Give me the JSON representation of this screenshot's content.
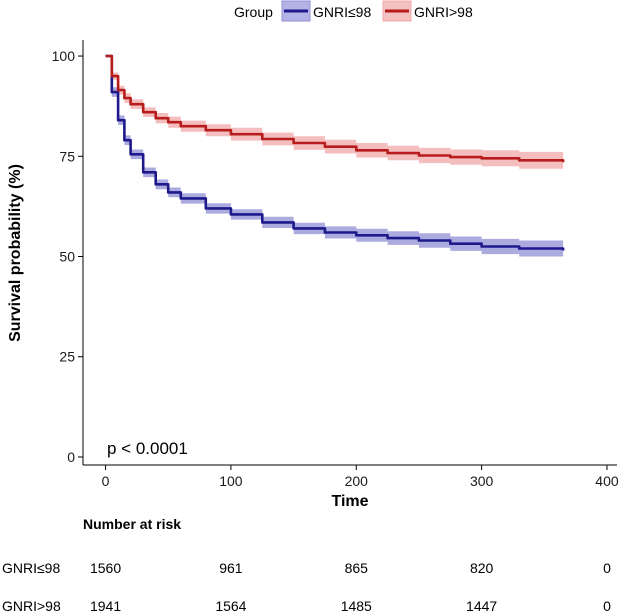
{
  "chart_data": {
    "type": "line",
    "subtype": "kaplan-meier survival curve with risk table",
    "xlabel": "Time",
    "ylabel": "Survival probability (%)",
    "xlim": [
      -18,
      408
    ],
    "ylim": [
      -2,
      104
    ],
    "x_ticks": [
      0,
      100,
      200,
      300,
      400
    ],
    "y_ticks": [
      0,
      25,
      50,
      75,
      100
    ],
    "grid": false,
    "legend": {
      "title": "Group",
      "placement": "top"
    },
    "annotation": "p < 0.0001",
    "series": [
      {
        "name": "GNRI≤98",
        "color": "#1f1a8c",
        "band_color": "#8f8fd6",
        "x": [
          0,
          5,
          10,
          15,
          20,
          30,
          40,
          50,
          60,
          80,
          100,
          125,
          150,
          175,
          200,
          225,
          250,
          275,
          300,
          330,
          365
        ],
        "values": [
          100,
          91,
          84,
          79,
          75.5,
          71,
          68,
          66,
          64.5,
          62,
          60.5,
          58.5,
          57,
          56,
          55.3,
          54.6,
          54,
          53.2,
          52.5,
          52,
          51.5
        ],
        "lower": [
          100,
          89.8,
          82.8,
          77.8,
          74.3,
          69.8,
          66.8,
          64.8,
          63.2,
          60.7,
          59.2,
          57.1,
          55.6,
          54.5,
          53.7,
          52.9,
          52.2,
          51.4,
          50.6,
          50,
          49.5
        ],
        "upper": [
          100,
          92.2,
          85.2,
          80.2,
          76.7,
          72.2,
          69.2,
          67.2,
          65.8,
          63.3,
          61.8,
          59.9,
          58.4,
          57.5,
          56.9,
          56.3,
          55.8,
          55,
          54.4,
          54,
          53.5
        ]
      },
      {
        "name": "GNRI>98",
        "color": "#b81c1c",
        "band_color": "#f0a8a8",
        "x": [
          0,
          5,
          10,
          15,
          20,
          30,
          40,
          50,
          60,
          80,
          100,
          125,
          150,
          175,
          200,
          225,
          250,
          275,
          300,
          330,
          365
        ],
        "values": [
          100,
          95,
          91.5,
          89.5,
          88,
          86,
          84.5,
          83.5,
          82.5,
          81.5,
          80.5,
          79.3,
          78.3,
          77.4,
          76.5,
          75.8,
          75.2,
          74.8,
          74.5,
          74,
          73.5
        ],
        "lower": [
          100,
          94.1,
          90.4,
          88.3,
          86.8,
          84.8,
          83.2,
          82.1,
          81.1,
          80,
          78.9,
          77.7,
          76.6,
          75.7,
          74.7,
          74,
          73.3,
          72.9,
          72.5,
          71.9,
          71.3
        ],
        "upper": [
          100,
          95.9,
          92.6,
          90.7,
          89.2,
          87.2,
          85.8,
          84.9,
          83.9,
          83,
          82.1,
          80.9,
          80,
          79.1,
          78.3,
          77.6,
          77.1,
          76.7,
          76.5,
          76.1,
          75.7
        ]
      }
    ],
    "risk_table": {
      "title": "Number at risk",
      "times": [
        0,
        100,
        200,
        300,
        400
      ],
      "rows": [
        {
          "name": "GNRI≤98",
          "counts": [
            "1560",
            "961",
            "865",
            "820",
            "0"
          ]
        },
        {
          "name": "GNRI>98",
          "counts": [
            "1941",
            "1564",
            "1485",
            "1447",
            "0"
          ]
        }
      ]
    }
  }
}
